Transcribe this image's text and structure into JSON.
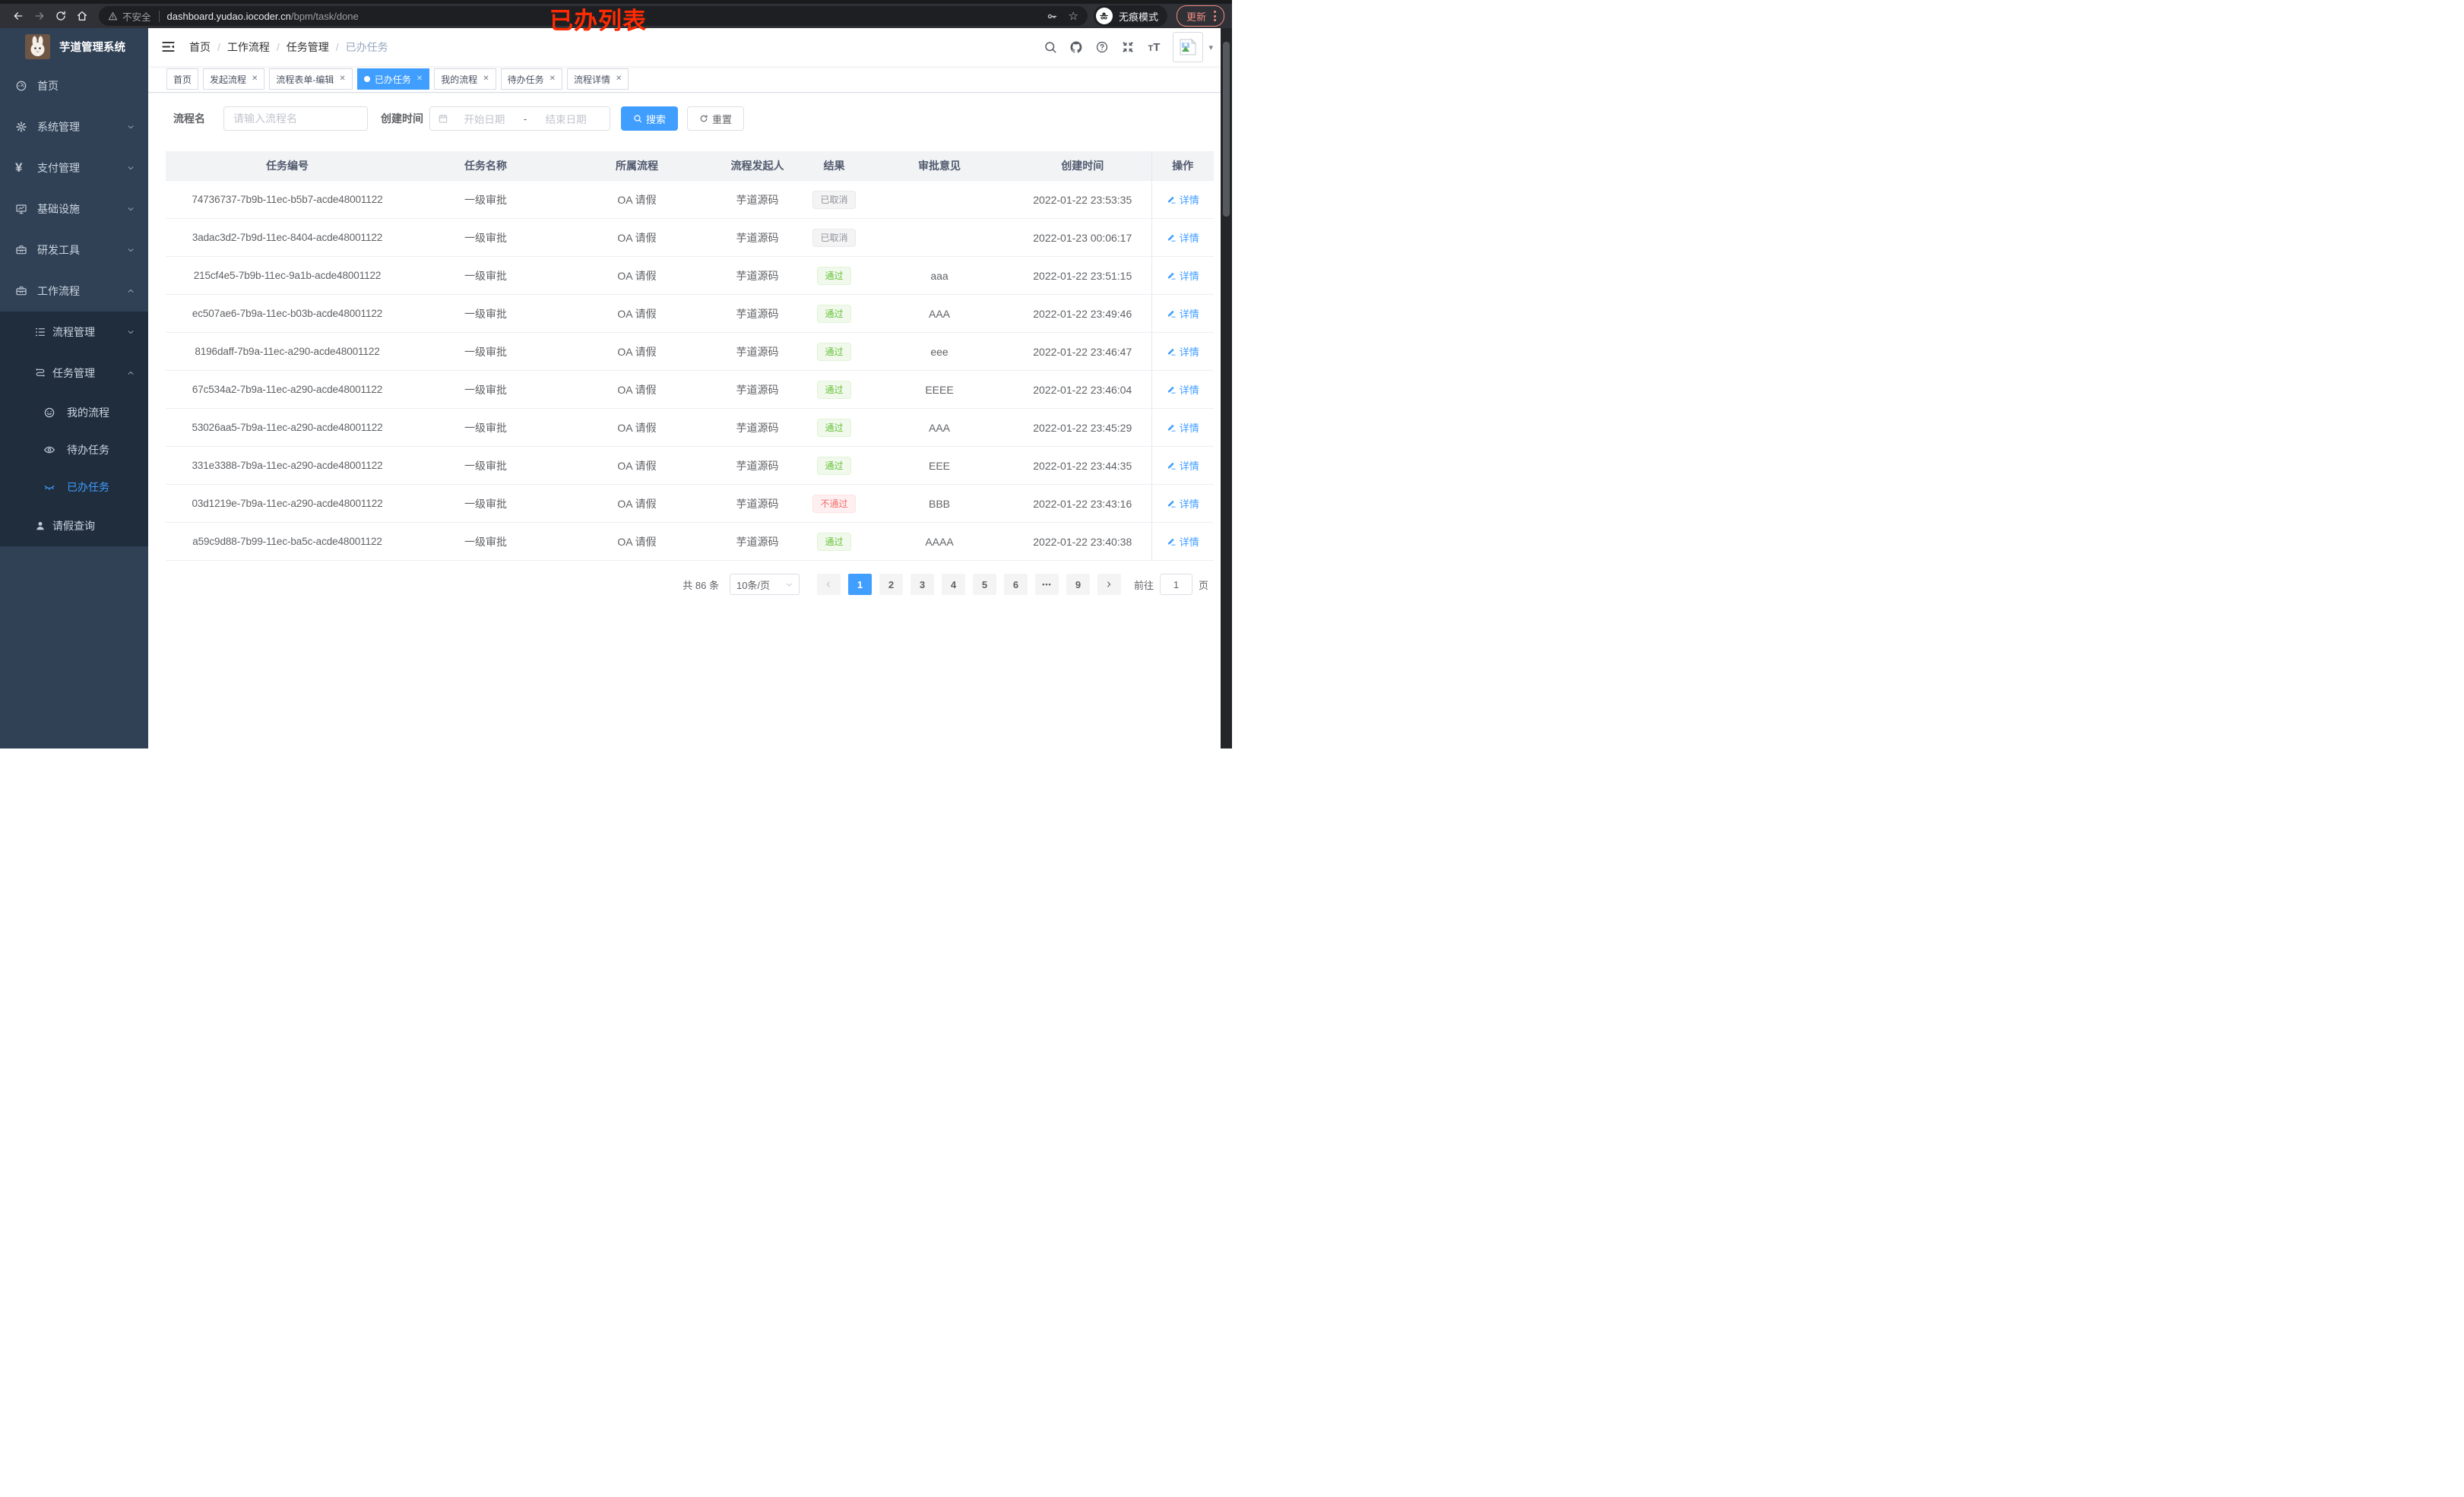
{
  "browser": {
    "security_label": "不安全",
    "url_host": "dashboard.yudao.iocoder.cn",
    "url_path": "/bpm/task/done",
    "incognito_label": "无痕模式",
    "update_label": "更新",
    "annotation": "已办列表"
  },
  "colors": {
    "accent": "#409eff",
    "success": "#67c23a",
    "danger": "#f56c6c",
    "info": "#909399",
    "sidebar_bg": "#304156",
    "submenu_bg": "#1f2d3d",
    "update_pill": "#f28b82",
    "annotation_red": "#ff2a00"
  },
  "sidebar": {
    "logo_title": "芋道管理系统",
    "items": [
      {
        "key": "home",
        "label": "首页",
        "icon": "dashboard",
        "level": 1,
        "arrow": null,
        "sub": false,
        "active": false
      },
      {
        "key": "system",
        "label": "系统管理",
        "icon": "gear",
        "level": 1,
        "arrow": "down",
        "sub": false,
        "active": false
      },
      {
        "key": "payment",
        "label": "支付管理",
        "icon": "yen",
        "level": 1,
        "arrow": "down",
        "sub": false,
        "active": false
      },
      {
        "key": "infra",
        "label": "基础设施",
        "icon": "monitor",
        "level": 1,
        "arrow": "down",
        "sub": false,
        "active": false
      },
      {
        "key": "devtools",
        "label": "研发工具",
        "icon": "toolbox",
        "level": 1,
        "arrow": "down",
        "sub": false,
        "active": false
      },
      {
        "key": "workflow",
        "label": "工作流程",
        "icon": "toolbox",
        "level": 1,
        "arrow": "up",
        "sub": false,
        "active": false
      },
      {
        "key": "process-mgmt",
        "label": "流程管理",
        "icon": "tree",
        "level": 2,
        "arrow": "down",
        "sub": true,
        "active": false
      },
      {
        "key": "task-mgmt",
        "label": "任务管理",
        "icon": "flow",
        "level": 2,
        "arrow": "up",
        "sub": true,
        "active": false
      },
      {
        "key": "my-process",
        "label": "我的流程",
        "icon": "face",
        "level": 3,
        "arrow": null,
        "sub": true,
        "active": false
      },
      {
        "key": "todo-tasks",
        "label": "待办任务",
        "icon": "eye",
        "level": 3,
        "arrow": null,
        "sub": true,
        "active": false
      },
      {
        "key": "done-tasks",
        "label": "已办任务",
        "icon": "eye-closed",
        "level": 3,
        "arrow": null,
        "sub": true,
        "active": true
      },
      {
        "key": "leave-query",
        "label": "请假查询",
        "icon": "user",
        "level": 2,
        "arrow": null,
        "sub": true,
        "active": false
      }
    ]
  },
  "navbar": {
    "breadcrumb": [
      "首页",
      "工作流程",
      "任务管理",
      "已办任务"
    ],
    "separator": "/"
  },
  "tabs": [
    {
      "key": "home",
      "label": "首页",
      "closable": false,
      "active": false
    },
    {
      "key": "start-process",
      "label": "发起流程",
      "closable": true,
      "active": false
    },
    {
      "key": "form-edit",
      "label": "流程表单-编辑",
      "closable": true,
      "active": false
    },
    {
      "key": "done-tasks",
      "label": "已办任务",
      "closable": true,
      "active": true
    },
    {
      "key": "my-process",
      "label": "我的流程",
      "closable": true,
      "active": false
    },
    {
      "key": "todo-tasks",
      "label": "待办任务",
      "closable": true,
      "active": false
    },
    {
      "key": "process-detail",
      "label": "流程详情",
      "closable": true,
      "active": false
    }
  ],
  "filters": {
    "name_label": "流程名",
    "name_placeholder": "请输入流程名",
    "time_label": "创建时间",
    "start_placeholder": "开始日期",
    "range_separator": "-",
    "end_placeholder": "结束日期",
    "search_label": "搜索",
    "reset_label": "重置"
  },
  "table": {
    "headers": [
      "任务编号",
      "任务名称",
      "所属流程",
      "流程发起人",
      "结果",
      "审批意见",
      "创建时间",
      "操作"
    ],
    "action_label": "详情",
    "rows": [
      {
        "id": "74736737-7b9b-11ec-b5b7-acde48001122",
        "name": "一级审批",
        "process": "OA 请假",
        "starter": "芋道源码",
        "result": "已取消",
        "result_type": "info",
        "comment": "",
        "created": "2022-01-22 23:53:35"
      },
      {
        "id": "3adac3d2-7b9d-11ec-8404-acde48001122",
        "name": "一级审批",
        "process": "OA 请假",
        "starter": "芋道源码",
        "result": "已取消",
        "result_type": "info",
        "comment": "",
        "created": "2022-01-23 00:06:17"
      },
      {
        "id": "215cf4e5-7b9b-11ec-9a1b-acde48001122",
        "name": "一级审批",
        "process": "OA 请假",
        "starter": "芋道源码",
        "result": "通过",
        "result_type": "success",
        "comment": "aaa",
        "created": "2022-01-22 23:51:15"
      },
      {
        "id": "ec507ae6-7b9a-11ec-b03b-acde48001122",
        "name": "一级审批",
        "process": "OA 请假",
        "starter": "芋道源码",
        "result": "通过",
        "result_type": "success",
        "comment": "AAA",
        "created": "2022-01-22 23:49:46"
      },
      {
        "id": "8196daff-7b9a-11ec-a290-acde48001122",
        "name": "一级审批",
        "process": "OA 请假",
        "starter": "芋道源码",
        "result": "通过",
        "result_type": "success",
        "comment": "eee",
        "created": "2022-01-22 23:46:47"
      },
      {
        "id": "67c534a2-7b9a-11ec-a290-acde48001122",
        "name": "一级审批",
        "process": "OA 请假",
        "starter": "芋道源码",
        "result": "通过",
        "result_type": "success",
        "comment": "EEEE",
        "created": "2022-01-22 23:46:04"
      },
      {
        "id": "53026aa5-7b9a-11ec-a290-acde48001122",
        "name": "一级审批",
        "process": "OA 请假",
        "starter": "芋道源码",
        "result": "通过",
        "result_type": "success",
        "comment": "AAA",
        "created": "2022-01-22 23:45:29"
      },
      {
        "id": "331e3388-7b9a-11ec-a290-acde48001122",
        "name": "一级审批",
        "process": "OA 请假",
        "starter": "芋道源码",
        "result": "通过",
        "result_type": "success",
        "comment": "EEE",
        "created": "2022-01-22 23:44:35"
      },
      {
        "id": "03d1219e-7b9a-11ec-a290-acde48001122",
        "name": "一级审批",
        "process": "OA 请假",
        "starter": "芋道源码",
        "result": "不通过",
        "result_type": "danger",
        "comment": "BBB",
        "created": "2022-01-22 23:43:16"
      },
      {
        "id": "a59c9d88-7b99-11ec-ba5c-acde48001122",
        "name": "一级审批",
        "process": "OA 请假",
        "starter": "芋道源码",
        "result": "通过",
        "result_type": "success",
        "comment": "AAAA",
        "created": "2022-01-22 23:40:38"
      }
    ]
  },
  "pagination": {
    "total_text": "共 86 条",
    "page_size": "10条/页",
    "pages": [
      "1",
      "2",
      "3",
      "4",
      "5",
      "6",
      "more",
      "9"
    ],
    "active_page": "1",
    "goto_label": "前往",
    "goto_value": "1",
    "page_unit": "页"
  }
}
